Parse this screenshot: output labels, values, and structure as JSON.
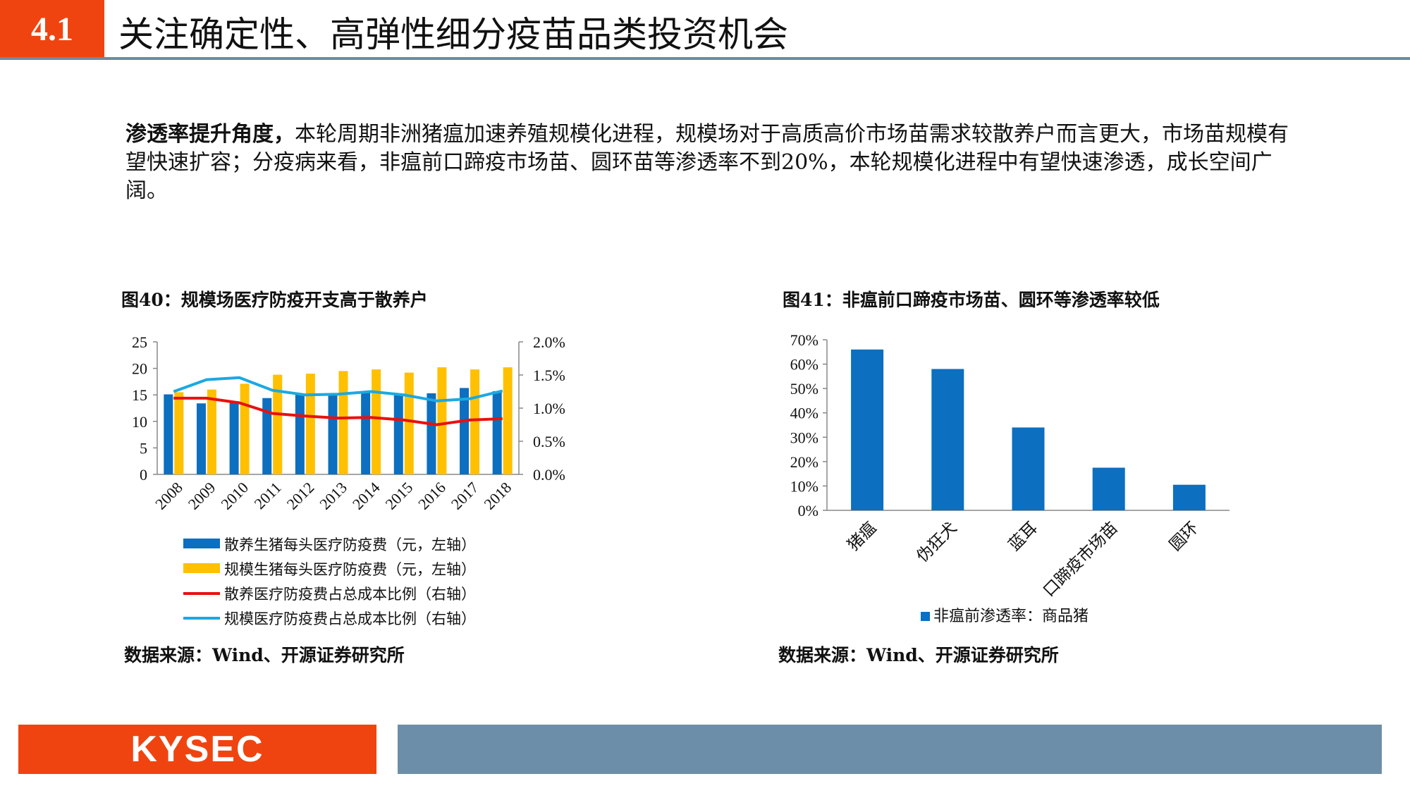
{
  "header": {
    "section_number": "4.1",
    "title": "关注确定性、高弹性细分疫苗品类投资机会"
  },
  "intro": {
    "lead": "渗透率提升角度，",
    "body": "本轮周期非洲猪瘟加速养殖规模化进程，规模场对于高质高价市场苗需求较散养户而言更大，市场苗规模有望快速扩容；分疫病来看，非瘟前口蹄疫市场苗、圆环苗等渗透率不到20%，本轮规模化进程中有望快速渗透，成长空间广阔。"
  },
  "colors": {
    "accent": "#f04410",
    "rule": "#6d8aa3",
    "blue": "#0c6fbf",
    "yellow": "#ffc000",
    "red": "#e8110f",
    "cyan": "#1ba9e1"
  },
  "figure40": {
    "title": "图40：规模场医疗防疫开支高于散养户",
    "source": "数据来源：Wind、开源证券研究所"
  },
  "figure41": {
    "title": "图41：非瘟前口蹄疫市场苗、圆环等渗透率较低",
    "source": "数据来源：Wind、开源证券研究所"
  },
  "footer": {
    "logo_text": "KYSEC"
  },
  "chart_data": [
    {
      "type": "bar",
      "categories": [
        "2008",
        "2009",
        "2010",
        "2011",
        "2012",
        "2013",
        "2014",
        "2015",
        "2016",
        "2017",
        "2018"
      ],
      "series": [
        {
          "name": "散养生猪每头医疗防疫费（元，左轴）",
          "type": "bar",
          "axis": "left",
          "values": [
            15.1,
            13.4,
            13.8,
            14.4,
            15.3,
            15.3,
            15.5,
            15.0,
            15.3,
            16.3,
            15.7
          ]
        },
        {
          "name": "规模生猪每头医疗防疫费（元，左轴）",
          "type": "bar",
          "axis": "left",
          "values": [
            15.5,
            16.0,
            17.1,
            18.8,
            19.0,
            19.5,
            19.8,
            19.2,
            20.2,
            19.8,
            20.2
          ]
        },
        {
          "name": "散养医疗防疫费占总成本比例（右轴）",
          "type": "line",
          "axis": "right",
          "values": [
            1.15,
            1.15,
            1.08,
            0.92,
            0.88,
            0.85,
            0.86,
            0.82,
            0.75,
            0.82,
            0.84
          ]
        },
        {
          "name": "规模医疗防疫费占总成本比例（右轴）",
          "type": "line",
          "axis": "right",
          "values": [
            1.25,
            1.43,
            1.46,
            1.27,
            1.2,
            1.21,
            1.25,
            1.2,
            1.11,
            1.14,
            1.26
          ]
        }
      ],
      "y_left": {
        "min": 0,
        "max": 25,
        "ticks": [
          "0",
          "5",
          "10",
          "15",
          "20",
          "25"
        ]
      },
      "y_right": {
        "min": 0,
        "max": 2.0,
        "ticks": [
          "0.0%",
          "0.5%",
          "1.0%",
          "1.5%",
          "2.0%"
        ]
      },
      "grid": false,
      "legend_position": "bottom"
    },
    {
      "type": "bar",
      "categories": [
        "猪瘟",
        "伪狂犬",
        "蓝耳",
        "口蹄疫市场苗",
        "圆环"
      ],
      "series": [
        {
          "name": "非瘟前渗透率：商品猪",
          "values": [
            66,
            58,
            34,
            17.5,
            10.5
          ]
        }
      ],
      "y": {
        "min": 0,
        "max": 70,
        "ticks": [
          "0%",
          "10%",
          "20%",
          "30%",
          "40%",
          "50%",
          "60%",
          "70%"
        ]
      },
      "grid": false,
      "legend_position": "bottom"
    }
  ]
}
